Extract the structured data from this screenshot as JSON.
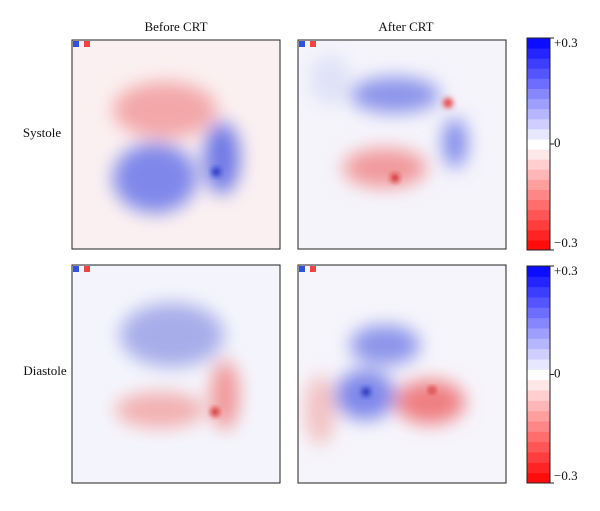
{
  "figure": {
    "columns": [
      "Before CRT",
      "After CRT"
    ],
    "rows": [
      "Systole",
      "Diastole"
    ],
    "colorbar": {
      "clim": [
        -0.3,
        0.3
      ],
      "ticks": [
        {
          "value": 0.3,
          "label": "+0.3"
        },
        0,
        {
          "value": -0.3,
          "label": "−0.3"
        }
      ],
      "colors": [
        "#ff0000",
        "#ffffff",
        "#0000ff"
      ]
    }
  }
}
